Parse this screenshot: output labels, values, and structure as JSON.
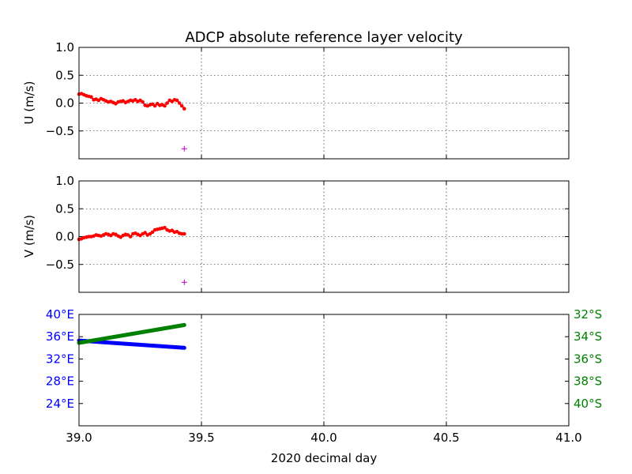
{
  "chart_data": {
    "title": "ADCP absolute reference layer velocity",
    "xlabel": "2020 decimal day",
    "xlim": [
      39.0,
      41.0
    ],
    "x_ticks": [
      39.0,
      39.5,
      40.0,
      40.5,
      41.0
    ],
    "x_tick_labels": [
      "39.0",
      "39.5",
      "40.0",
      "40.5",
      "41.0"
    ],
    "grid": true,
    "colors": {
      "line": "#0000ff",
      "marker": "#ff0000",
      "plus": "#bf00bf",
      "lon": "#0000ff",
      "lat": "#008000"
    },
    "panels": [
      {
        "ylabel": "U (m/s)",
        "type": "line",
        "ylim": [
          -1.0,
          1.0
        ],
        "y_ticks": [
          1.0,
          0.5,
          0.0,
          -0.5
        ],
        "y_tick_labels": [
          "1.0",
          "0.5",
          "0.0",
          "−0.5"
        ],
        "series": [
          {
            "x": [
              39.0,
              39.01,
              39.02,
              39.03,
              39.04,
              39.05,
              39.06,
              39.07,
              39.08,
              39.09,
              39.1,
              39.11,
              39.12,
              39.13,
              39.14,
              39.15,
              39.16,
              39.17,
              39.18,
              39.19,
              39.2,
              39.21,
              39.22,
              39.23,
              39.24,
              39.25,
              39.26,
              39.27,
              39.28,
              39.29,
              39.3,
              39.31,
              39.32,
              39.33,
              39.34,
              39.35,
              39.36,
              39.37,
              39.38,
              39.39,
              39.4,
              39.41,
              39.42,
              39.43
            ],
            "y": [
              0.16,
              0.17,
              0.15,
              0.13,
              0.12,
              0.11,
              0.06,
              0.07,
              0.05,
              0.08,
              0.06,
              0.04,
              0.02,
              0.03,
              0.01,
              -0.01,
              0.02,
              0.03,
              0.04,
              0.01,
              0.03,
              0.05,
              0.04,
              0.06,
              0.03,
              0.05,
              0.02,
              -0.04,
              -0.05,
              -0.03,
              -0.02,
              -0.05,
              -0.01,
              -0.04,
              -0.03,
              -0.05,
              0.0,
              0.05,
              0.03,
              0.06,
              0.05,
              0.0,
              -0.05,
              -0.1
            ]
          }
        ],
        "outlier": {
          "x": 39.43,
          "y": -0.82
        }
      },
      {
        "ylabel": "V (m/s)",
        "type": "line",
        "ylim": [
          -1.0,
          1.0
        ],
        "y_ticks": [
          1.0,
          0.5,
          0.0,
          -0.5
        ],
        "y_tick_labels": [
          "1.0",
          "0.5",
          "0.0",
          "−0.5"
        ],
        "series": [
          {
            "x": [
              39.0,
              39.01,
              39.02,
              39.03,
              39.04,
              39.05,
              39.06,
              39.07,
              39.08,
              39.09,
              39.1,
              39.11,
              39.12,
              39.13,
              39.14,
              39.15,
              39.16,
              39.17,
              39.18,
              39.19,
              39.2,
              39.21,
              39.22,
              39.23,
              39.24,
              39.25,
              39.26,
              39.27,
              39.28,
              39.29,
              39.3,
              39.31,
              39.32,
              39.33,
              39.34,
              39.35,
              39.36,
              39.37,
              39.38,
              39.39,
              39.4,
              39.41,
              39.42,
              39.43
            ],
            "y": [
              -0.05,
              -0.04,
              -0.02,
              -0.01,
              0.0,
              0.0,
              0.01,
              0.03,
              0.02,
              0.01,
              0.03,
              0.05,
              0.04,
              0.02,
              0.05,
              0.04,
              0.01,
              -0.01,
              0.02,
              0.04,
              0.03,
              0.0,
              0.05,
              0.06,
              0.04,
              0.02,
              0.05,
              0.07,
              0.03,
              0.05,
              0.08,
              0.12,
              0.13,
              0.14,
              0.15,
              0.16,
              0.12,
              0.1,
              0.11,
              0.08,
              0.09,
              0.06,
              0.05,
              0.05
            ]
          }
        ],
        "outlier": {
          "x": 39.43,
          "y": -0.82
        }
      },
      {
        "type": "line",
        "left_ylim": [
          20,
          40
        ],
        "left_ticks": [
          40,
          36,
          32,
          28,
          24
        ],
        "left_tick_labels": [
          "40°E",
          "36°E",
          "32°E",
          "28°E",
          "24°E"
        ],
        "right_ylim": [
          42,
          32
        ],
        "right_ticks": [
          32,
          34,
          36,
          38,
          40
        ],
        "right_tick_labels": [
          "32°S",
          "34°S",
          "36°S",
          "38°S",
          "40°S"
        ],
        "series": [
          {
            "axis": "left",
            "x": [
              39.0,
              39.43
            ],
            "y": [
              35.3,
              34.0
            ]
          },
          {
            "axis": "right",
            "x": [
              39.0,
              39.43
            ],
            "y": [
              34.55,
              32.95
            ]
          }
        ]
      }
    ]
  }
}
